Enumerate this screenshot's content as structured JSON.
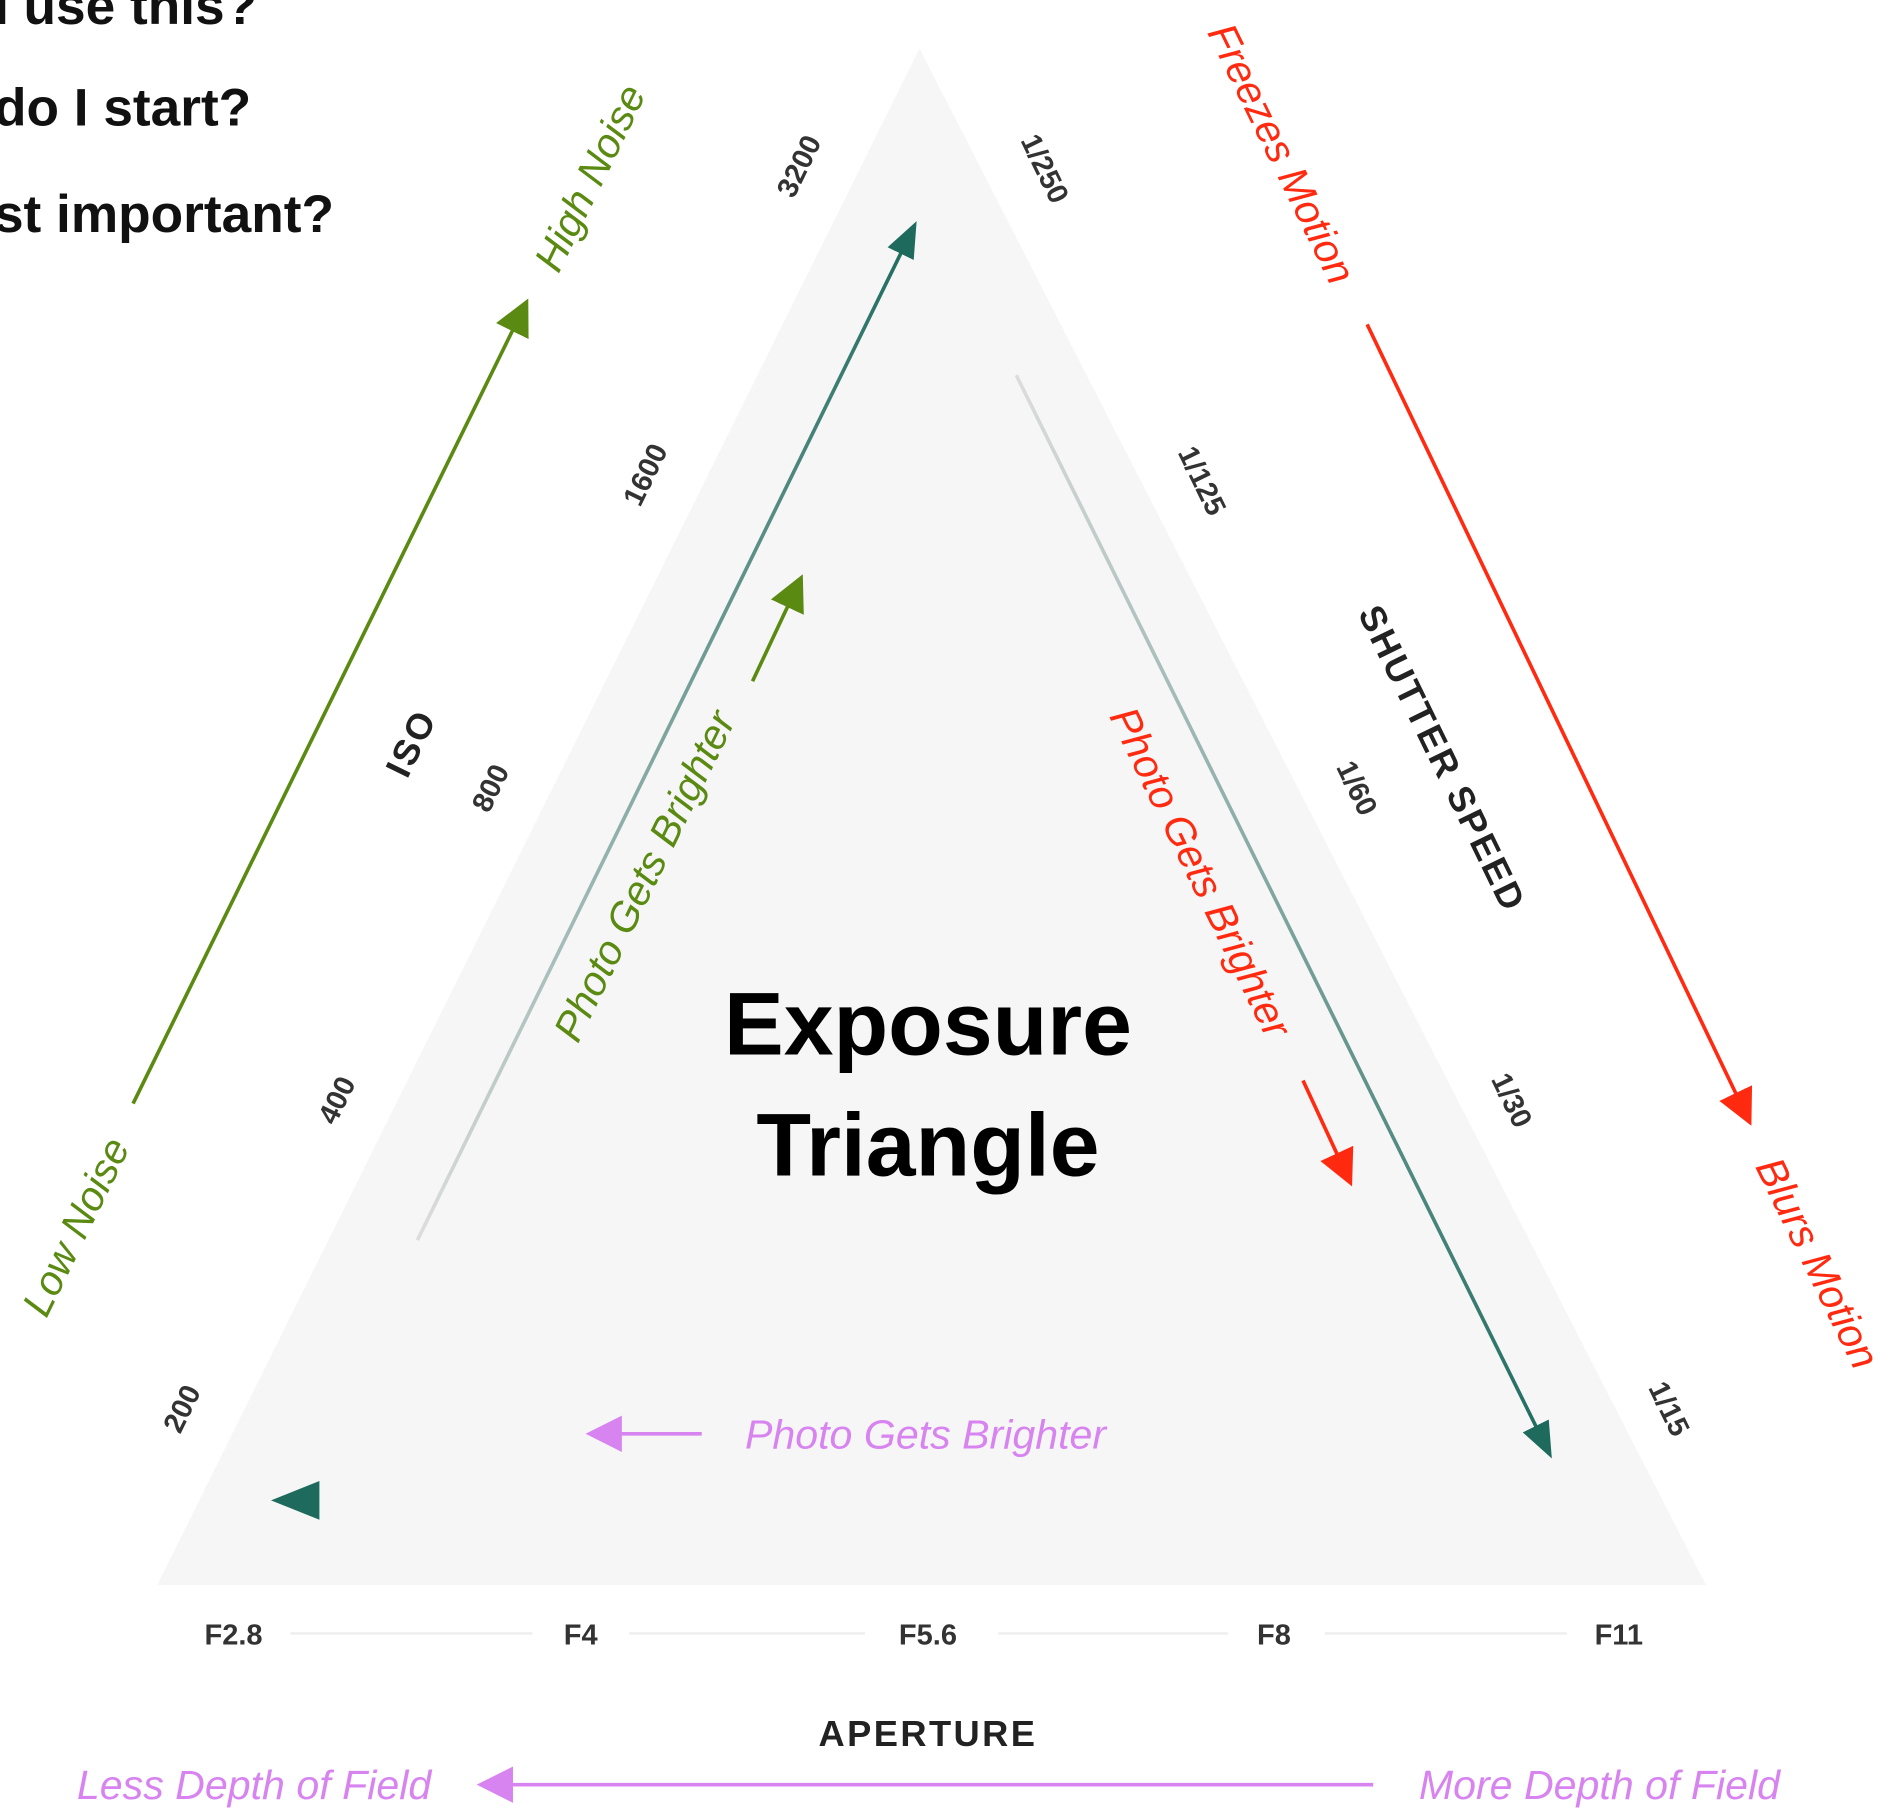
{
  "header": {
    "questions": [
      "I use this?",
      "do I start?",
      "st important?"
    ]
  },
  "center_title": [
    "Exposure",
    "Triangle"
  ],
  "iso": {
    "label": "ISO",
    "ticks": [
      "3200",
      "1600",
      "800",
      "400",
      "200"
    ]
  },
  "shutter": {
    "label": "SHUTTER SPEED",
    "ticks": [
      "1/250",
      "1/125",
      "1/60",
      "1/30",
      "1/15"
    ]
  },
  "aperture": {
    "label": "APERTURE",
    "ticks": [
      "F2.8",
      "F4",
      "F5.6",
      "F8",
      "F11"
    ]
  },
  "annotations": {
    "high_noise": "High Noise",
    "low_noise": "Low Noise",
    "freezes_motion": "Freezes Motion",
    "blurs_motion": "Blurs Motion",
    "less_dof": "Less Depth of Field",
    "more_dof": "More Depth of Field",
    "iso_brighter": "Photo Gets Brighter",
    "shutter_brighter": "Photo Gets Brighter",
    "aperture_brighter": "Photo Gets Brighter"
  }
}
